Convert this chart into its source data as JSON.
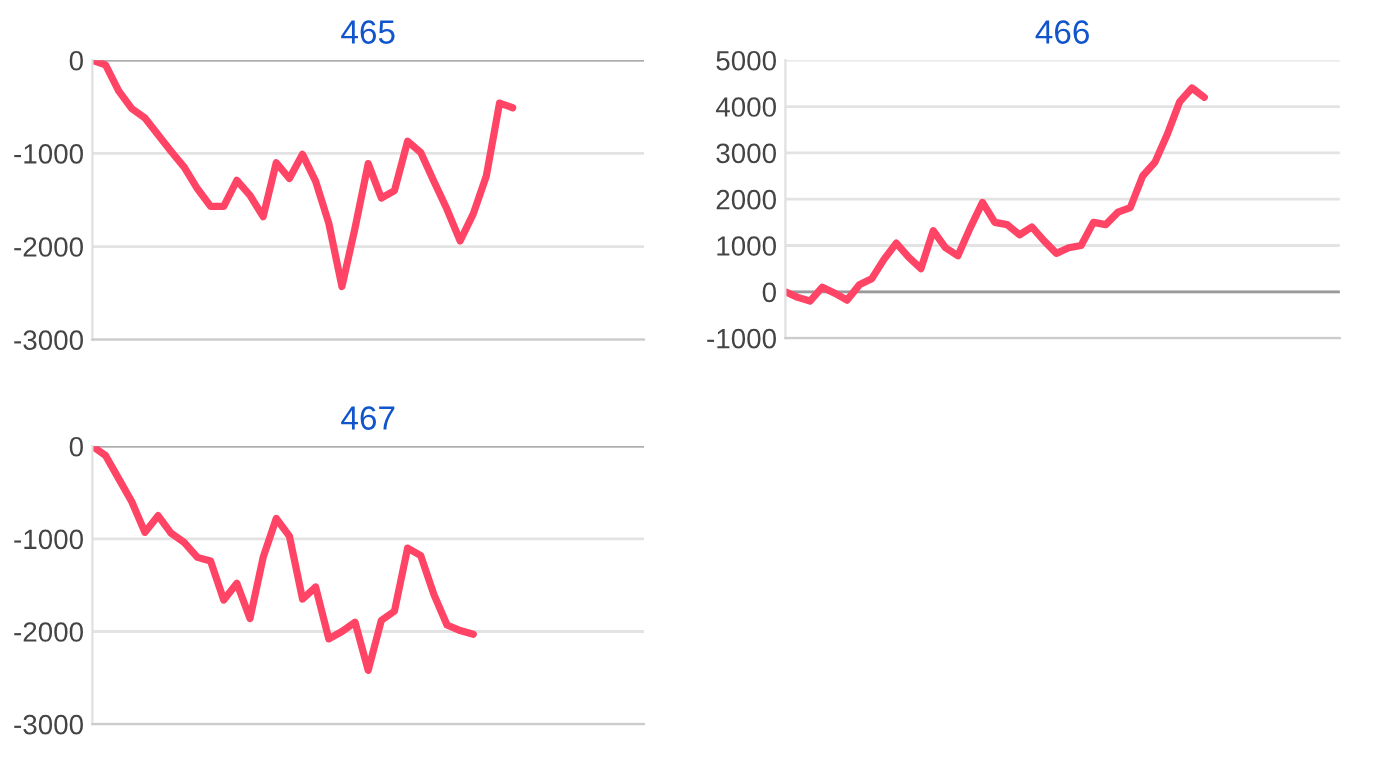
{
  "chart_data": [
    {
      "type": "line",
      "title": "465",
      "categories": [
        null,
        null,
        null,
        null,
        null,
        null,
        null,
        null,
        null,
        null,
        null,
        null,
        null,
        null,
        null,
        null,
        null,
        null,
        null,
        null,
        null,
        null,
        null,
        null,
        null,
        null,
        null,
        null,
        null,
        null,
        null,
        null,
        null,
        null,
        null,
        null,
        null,
        null,
        null,
        null,
        null,
        null,
        null
      ],
      "series": [
        {
          "color": "#ff4466",
          "values": [
            0,
            -50,
            -330,
            -520,
            -620,
            -800,
            -980,
            -1150,
            -1380,
            -1570,
            -1570,
            -1290,
            -1450,
            -1680,
            -1100,
            -1270,
            -1010,
            -1300,
            -1750,
            -2430,
            -1800,
            -1110,
            -1480,
            -1400,
            -870,
            -990,
            -1300,
            -1600,
            -1940,
            -1650,
            -1240,
            -460,
            -510,
            null,
            null,
            null,
            null,
            null,
            null,
            null,
            null,
            null,
            null
          ]
        }
      ],
      "ylim": [
        -3000,
        0
      ],
      "yticks": [
        -3000,
        -2000,
        -1000,
        0
      ],
      "grid": "y",
      "tick_labels": "y"
    },
    {
      "type": "line",
      "title": "466",
      "categories": [
        null,
        null,
        null,
        null,
        null,
        null,
        null,
        null,
        null,
        null,
        null,
        null,
        null,
        null,
        null,
        null,
        null,
        null,
        null,
        null,
        null,
        null,
        null,
        null,
        null,
        null,
        null,
        null,
        null,
        null,
        null,
        null,
        null,
        null,
        null,
        null,
        null,
        null,
        null,
        null,
        null,
        null,
        null,
        null,
        null,
        null
      ],
      "series": [
        {
          "color": "#ff4466",
          "values": [
            0,
            -120,
            -200,
            100,
            -30,
            -180,
            150,
            280,
            700,
            1050,
            750,
            500,
            1320,
            950,
            780,
            1380,
            1930,
            1500,
            1450,
            1230,
            1400,
            1100,
            830,
            950,
            1000,
            1500,
            1450,
            1720,
            1820,
            2500,
            2800,
            3400,
            4100,
            4400,
            4200,
            null,
            null,
            null,
            null,
            null,
            null,
            null,
            null,
            null,
            null,
            null
          ]
        }
      ],
      "ylim": [
        -1000,
        5000
      ],
      "yticks": [
        -1000,
        0,
        1000,
        2000,
        3000,
        4000,
        5000
      ],
      "grid": "y",
      "tick_labels": "y"
    },
    {
      "type": "line",
      "title": "467",
      "categories": [
        null,
        null,
        null,
        null,
        null,
        null,
        null,
        null,
        null,
        null,
        null,
        null,
        null,
        null,
        null,
        null,
        null,
        null,
        null,
        null,
        null,
        null,
        null,
        null,
        null,
        null,
        null,
        null,
        null,
        null,
        null,
        null,
        null,
        null,
        null,
        null,
        null,
        null,
        null,
        null,
        null,
        null,
        null
      ],
      "series": [
        {
          "color": "#ff4466",
          "values": [
            0,
            -100,
            -350,
            -600,
            -930,
            -750,
            -940,
            -1040,
            -1200,
            -1240,
            -1660,
            -1480,
            -1860,
            -1200,
            -780,
            -970,
            -1650,
            -1520,
            -2080,
            -2000,
            -1900,
            -2420,
            -1880,
            -1780,
            -1100,
            -1180,
            -1600,
            -1930,
            -1990,
            -2030,
            null,
            null,
            null,
            null,
            null,
            null,
            null,
            null,
            null,
            null,
            null,
            null,
            null
          ]
        }
      ],
      "ylim": [
        -3000,
        0
      ],
      "yticks": [
        -3000,
        -2000,
        -1000,
        0
      ],
      "grid": "y",
      "tick_labels": "y"
    }
  ]
}
